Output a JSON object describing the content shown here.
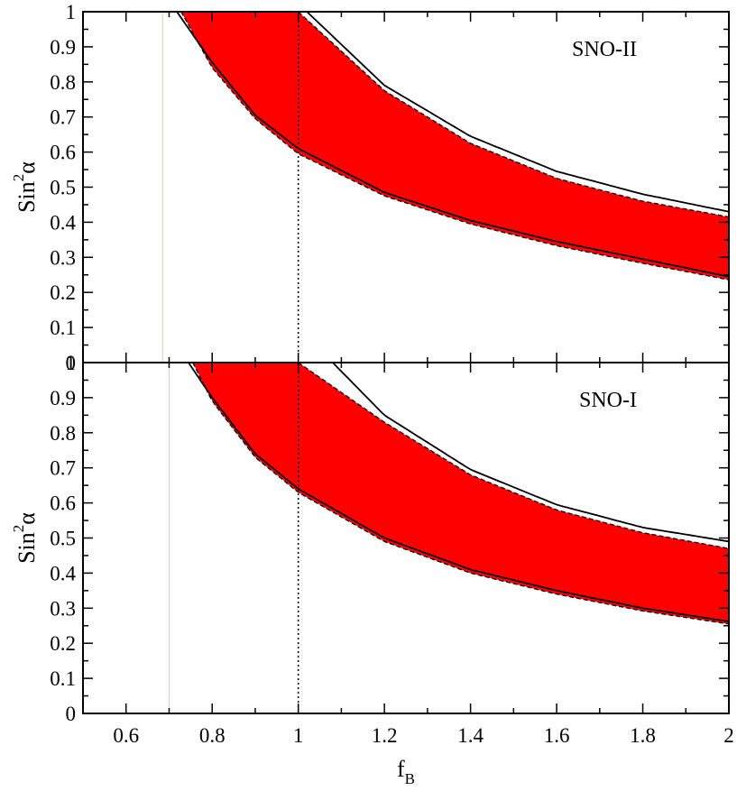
{
  "chart_data": [
    {
      "type": "area",
      "panel_label": "SNO-II",
      "xlabel": "",
      "ylabel": "Sin",
      "ylabel_sup": "2",
      "ylabel_greek": "α",
      "xlim": [
        0.5,
        2.0
      ],
      "ylim": [
        0,
        1
      ],
      "xticks": [],
      "yticks": [
        "0",
        "0.1",
        "0.2",
        "0.3",
        "0.4",
        "0.5",
        "0.6",
        "0.7",
        "0.8",
        "0.9",
        "1"
      ],
      "grid": false,
      "band_color": "#ff0000",
      "band": {
        "x": [
          0.728,
          0.8,
          0.9,
          1.0,
          1.2,
          1.4,
          1.6,
          1.8,
          2.0
        ],
        "lower": [
          1.0,
          0.84,
          0.695,
          0.595,
          0.475,
          0.395,
          0.333,
          0.283,
          0.236
        ],
        "upper": [
          null,
          null,
          null,
          1.0,
          0.775,
          0.625,
          0.525,
          0.46,
          0.415
        ]
      },
      "solid_curves": [
        {
          "x": [
            0.718,
            0.8,
            0.9,
            1.0,
            1.2,
            1.4,
            1.6,
            1.8,
            2.0
          ],
          "y": [
            1.0,
            0.855,
            0.705,
            0.61,
            0.485,
            0.405,
            0.345,
            0.295,
            0.245
          ]
        },
        {
          "x": [
            1.02,
            1.2,
            1.4,
            1.6,
            1.8,
            2.0
          ],
          "y": [
            1.0,
            0.79,
            0.645,
            0.545,
            0.48,
            0.43
          ]
        }
      ],
      "dotted_vline_x": 1.0,
      "faint_vline_x": 0.685
    },
    {
      "type": "area",
      "panel_label": "SNO-I",
      "xlabel": "f",
      "xlabel_sub": "B",
      "ylabel": "Sin",
      "ylabel_sup": "2",
      "ylabel_greek": "α",
      "xlim": [
        0.5,
        2.0
      ],
      "ylim": [
        0,
        1
      ],
      "xticks": [
        "0.6",
        "0.8",
        "1",
        "1.2",
        "1.4",
        "1.6",
        "1.8",
        "2"
      ],
      "yticks": [
        "0",
        "0.1",
        "0.2",
        "0.3",
        "0.4",
        "0.5",
        "0.6",
        "0.7",
        "0.8",
        "0.9",
        "1"
      ],
      "grid": false,
      "band_color": "#ff0000",
      "band": {
        "x": [
          0.755,
          0.8,
          0.9,
          1.0,
          1.2,
          1.4,
          1.6,
          1.8,
          2.0
        ],
        "lower": [
          1.0,
          0.89,
          0.73,
          0.63,
          0.49,
          0.4,
          0.34,
          0.292,
          0.255
        ],
        "upper": [
          null,
          null,
          null,
          1.0,
          0.83,
          0.68,
          0.58,
          0.515,
          0.47
        ]
      },
      "solid_curves": [
        {
          "x": [
            0.745,
            0.8,
            0.9,
            1.0,
            1.2,
            1.4,
            1.6,
            1.8,
            2.0
          ],
          "y": [
            1.0,
            0.9,
            0.74,
            0.64,
            0.5,
            0.41,
            0.35,
            0.3,
            0.262
          ]
        },
        {
          "x": [
            1.08,
            1.2,
            1.4,
            1.6,
            1.8,
            2.0
          ],
          "y": [
            1.0,
            0.85,
            0.695,
            0.595,
            0.53,
            0.49
          ]
        }
      ],
      "dotted_vline_x": 1.0,
      "faint_vline_x": 0.7
    }
  ]
}
